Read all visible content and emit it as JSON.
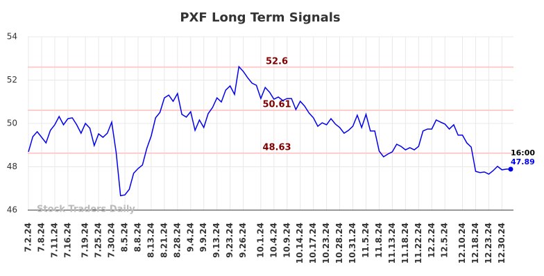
{
  "chart_data": {
    "type": "line",
    "title": "PXF Long Term Signals",
    "watermark": "Stock Traders Daily",
    "categories": [
      "7.2.24",
      null,
      null,
      "7.8.24",
      null,
      null,
      "7.11.24",
      null,
      null,
      "7.16.24",
      null,
      null,
      null,
      "7.19.24",
      null,
      null,
      "7.25.24",
      null,
      null,
      "7.30.24",
      null,
      null,
      "8.5.24",
      null,
      null,
      "8.8.24",
      null,
      null,
      "8.13.24",
      null,
      null,
      "8.21.24",
      null,
      null,
      "8.28.24",
      null,
      null,
      "9.4.24",
      null,
      null,
      "9.9.24",
      null,
      null,
      "9.13.24",
      null,
      null,
      "9.23.24",
      null,
      null,
      "9.26.24",
      null,
      null,
      null,
      "10.1.24",
      null,
      null,
      "10.4.24",
      null,
      null,
      "10.9.24",
      null,
      null,
      "10.14.24",
      null,
      null,
      "10.17.24",
      null,
      null,
      "10.23.24",
      null,
      null,
      "10.28.24",
      null,
      null,
      "10.31.24",
      null,
      null,
      "11.5.24",
      null,
      null,
      "11.8.24",
      null,
      null,
      "11.13.24",
      null,
      null,
      "11.18.24",
      null,
      null,
      "11.22.24",
      null,
      null,
      "12.2.24",
      null,
      null,
      "12.5.24",
      null,
      null,
      null,
      "12.10.24",
      null,
      null,
      "12.18.24",
      null,
      null,
      "12.23.24",
      null,
      null,
      "12.30.24",
      null,
      null
    ],
    "values": [
      48.69,
      49.39,
      49.62,
      49.36,
      49.1,
      49.68,
      49.94,
      50.32,
      49.94,
      50.22,
      50.26,
      49.94,
      49.55,
      50.0,
      49.78,
      48.98,
      49.52,
      49.36,
      49.55,
      50.06,
      48.66,
      46.67,
      46.7,
      46.96,
      47.7,
      47.92,
      48.08,
      48.85,
      49.42,
      50.26,
      50.51,
      51.18,
      51.31,
      51.02,
      51.38,
      50.42,
      50.29,
      50.54,
      49.68,
      50.16,
      49.81,
      50.45,
      50.74,
      51.18,
      50.99,
      51.54,
      51.73,
      51.34,
      52.62,
      52.4,
      52.11,
      51.86,
      51.76,
      51.15,
      51.66,
      51.44,
      51.12,
      51.22,
      51.06,
      51.15,
      51.15,
      50.64,
      51.02,
      50.8,
      50.48,
      50.26,
      49.87,
      50.03,
      49.94,
      50.22,
      49.97,
      49.81,
      49.55,
      49.68,
      49.87,
      50.38,
      49.81,
      50.42,
      49.65,
      49.65,
      48.72,
      48.46,
      48.59,
      48.69,
      49.04,
      48.94,
      48.78,
      48.88,
      48.78,
      48.94,
      49.65,
      49.74,
      49.74,
      50.16,
      50.06,
      49.97,
      49.74,
      49.94,
      49.46,
      49.46,
      49.1,
      48.91,
      47.79,
      47.73,
      47.76,
      47.66,
      47.82,
      48.02,
      47.86,
      47.89,
      47.89
    ],
    "color": "#0000ee",
    "levels": [
      52.6,
      50.61,
      48.63
    ],
    "level_color": "#ffcccc",
    "level_text_color": "#800000",
    "last_time": "16:00",
    "ylim": [
      46,
      54
    ],
    "yticks": [
      46,
      48,
      50,
      52,
      54
    ],
    "grid": true
  }
}
